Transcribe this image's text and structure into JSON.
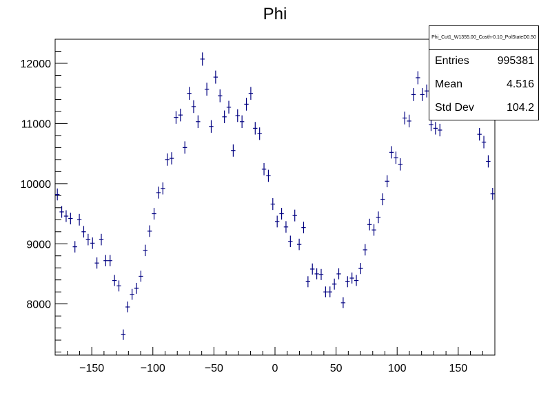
{
  "chart_data": {
    "type": "scatter",
    "title": "Phi",
    "xlabel": "",
    "ylabel": "",
    "xlim": [
      -180,
      180
    ],
    "ylim": [
      7150,
      12400
    ],
    "xticks": [
      -150,
      -100,
      -50,
      0,
      50,
      100,
      150
    ],
    "xtick_labels": [
      "−150",
      "−100",
      "−50",
      "0",
      "50",
      "100",
      "150"
    ],
    "yticks": [
      8000,
      9000,
      10000,
      11000,
      12000
    ],
    "ytick_labels": [
      "8000",
      "9000",
      "10000",
      "11000",
      "12000"
    ],
    "marker_color": "#000080",
    "error_bars": true,
    "series": [
      {
        "name": "Phi",
        "x": [
          -178.2,
          -174.6,
          -171,
          -167.4,
          -163.8,
          -160.2,
          -156.6,
          -153,
          -149.4,
          -145.8,
          -142.2,
          -138.6,
          -135,
          -131.4,
          -127.8,
          -124.2,
          -120.6,
          -117,
          -113.4,
          -109.8,
          -106.2,
          -102.6,
          -99,
          -95.4,
          -91.8,
          -88.2,
          -84.6,
          -81,
          -77.4,
          -73.8,
          -70.2,
          -66.6,
          -63,
          -59.4,
          -55.8,
          -52.2,
          -48.6,
          -45,
          -41.4,
          -37.8,
          -34.2,
          -30.6,
          -27,
          -23.4,
          -19.8,
          -16.2,
          -12.6,
          -9,
          -5.4,
          -1.8,
          1.8,
          5.4,
          9,
          12.6,
          16.2,
          19.8,
          23.4,
          27,
          30.6,
          34.2,
          37.8,
          41.4,
          45,
          48.6,
          52.2,
          55.8,
          59.4,
          63,
          66.6,
          70.2,
          73.8,
          77.4,
          81,
          84.6,
          88.2,
          91.8,
          95.4,
          99,
          102.6,
          106.2,
          109.8,
          113.4,
          117,
          120.6,
          124.2,
          127.8,
          131.4,
          135,
          167.4,
          171,
          174.6,
          178.2
        ],
        "y": [
          9820,
          9530,
          9460,
          9420,
          8950,
          9400,
          9200,
          9070,
          9010,
          8680,
          9070,
          8720,
          8720,
          8390,
          8300,
          7490,
          7950,
          8160,
          8260,
          8460,
          8890,
          9210,
          9500,
          9850,
          9920,
          10400,
          10420,
          11100,
          11140,
          10600,
          11500,
          11280,
          11030,
          12070,
          11570,
          10950,
          11770,
          11460,
          11110,
          11270,
          10550,
          11130,
          11030,
          11320,
          11500,
          10920,
          10830,
          10240,
          10130,
          9660,
          9370,
          9500,
          9280,
          9040,
          9470,
          8990,
          9270,
          8370,
          8580,
          8500,
          8490,
          8200,
          8200,
          8330,
          8500,
          8020,
          8370,
          8430,
          8390,
          8590,
          8900,
          9320,
          9230,
          9440,
          9740,
          10040,
          10520,
          10430,
          10320,
          11090,
          11040,
          11480,
          11760,
          11480,
          11540,
          10980,
          10920,
          10890,
          10820,
          10690,
          10370,
          9830
        ]
      }
    ]
  },
  "stats_box": {
    "title": "Phi_Cut1_W1355.00_Costh-0.10_PolStateD0.50",
    "entries_label": "Entries",
    "entries_value": "995381",
    "mean_label": "Mean",
    "mean_value": "4.516",
    "stddev_label": "Std Dev",
    "stddev_value": "104.2"
  }
}
